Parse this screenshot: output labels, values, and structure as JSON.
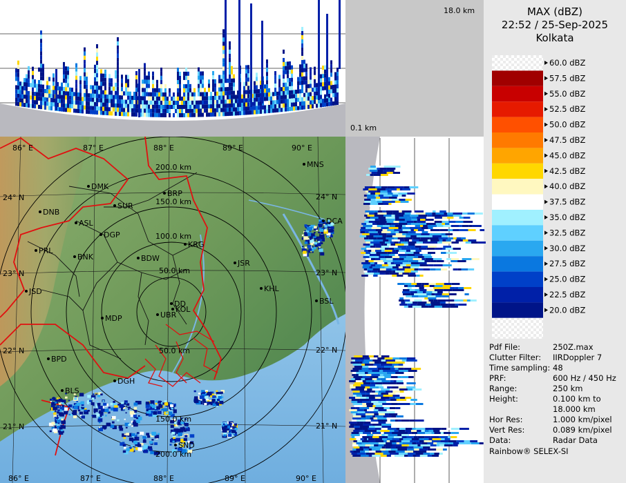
{
  "header": {
    "product": "MAX (dBZ)",
    "datetime": "22:52 / 25-Sep-2025",
    "location": "Kolkata"
  },
  "altitude_top_label": "18.0 km",
  "altitude_bottom_label": "0.1 km",
  "legend": {
    "entries": [
      {
        "label": "60.0 dBZ",
        "color": "checker"
      },
      {
        "label": "57.5 dBZ",
        "color": "#a00000"
      },
      {
        "label": "55.0 dBZ",
        "color": "#c80000"
      },
      {
        "label": "52.5 dBZ",
        "color": "#e61a00"
      },
      {
        "label": "50.0 dBZ",
        "color": "#ff5000"
      },
      {
        "label": "47.5 dBZ",
        "color": "#ff7a00"
      },
      {
        "label": "45.0 dBZ",
        "color": "#ffa500"
      },
      {
        "label": "42.5 dBZ",
        "color": "#ffd700"
      },
      {
        "label": "40.0 dBZ",
        "color": "#fff8c0"
      },
      {
        "label": "37.5 dBZ",
        "color": "#ffffff"
      },
      {
        "label": "35.0 dBZ",
        "color": "#a0f0ff"
      },
      {
        "label": "32.5 dBZ",
        "color": "#5fd0ff"
      },
      {
        "label": "30.0 dBZ",
        "color": "#2aa8f0"
      },
      {
        "label": "27.5 dBZ",
        "color": "#0a78e0"
      },
      {
        "label": "25.0 dBZ",
        "color": "#0040c8"
      },
      {
        "label": "22.5 dBZ",
        "color": "#0020a8"
      },
      {
        "label": "20.0 dBZ",
        "color": "#001488"
      }
    ]
  },
  "metadata": [
    {
      "key": "Pdf File:",
      "value": "250Z.max"
    },
    {
      "key": "Clutter Filter:",
      "value": "IIRDoppler 7"
    },
    {
      "key": "Time sampling:",
      "value": "48"
    },
    {
      "key": "PRF:",
      "value": "600 Hz / 450 Hz"
    },
    {
      "key": "Range:",
      "value": "250 km"
    },
    {
      "key": "Height:",
      "value": "0.100 km to"
    },
    {
      "key": "",
      "value": "18.000 km"
    },
    {
      "key": "Hor Res:",
      "value": "1.000 km/pixel"
    },
    {
      "key": "Vert Res:",
      "value": "0.089 km/pixel"
    },
    {
      "key": "Data:",
      "value": "Radar Data"
    }
  ],
  "footer": "Rainbow® SELEX-SI",
  "map": {
    "lon_labels": [
      "86° E",
      "87° E",
      "88° E",
      "89° E",
      "90° E"
    ],
    "lat_labels": [
      "24° N",
      "23° N",
      "22° N",
      "21° N"
    ],
    "range_labels": [
      "50.0 km",
      "100.0 km",
      "150.0 km",
      "200.0 km"
    ],
    "range_labels_south": [
      "50.0 km",
      "150.0 km",
      "200.0 km"
    ],
    "cities": [
      "MNS",
      "DMK",
      "BRP",
      "SUR",
      "DNB",
      "ASL",
      "DGP",
      "DCA",
      "PRL",
      "BNK",
      "KRG",
      "BDW",
      "JSR",
      "JSD",
      "KHL",
      "DD",
      "KOL",
      "BSL",
      "MDP",
      "UBR",
      "BPD",
      "DGH",
      "BLS",
      "SND"
    ]
  }
}
